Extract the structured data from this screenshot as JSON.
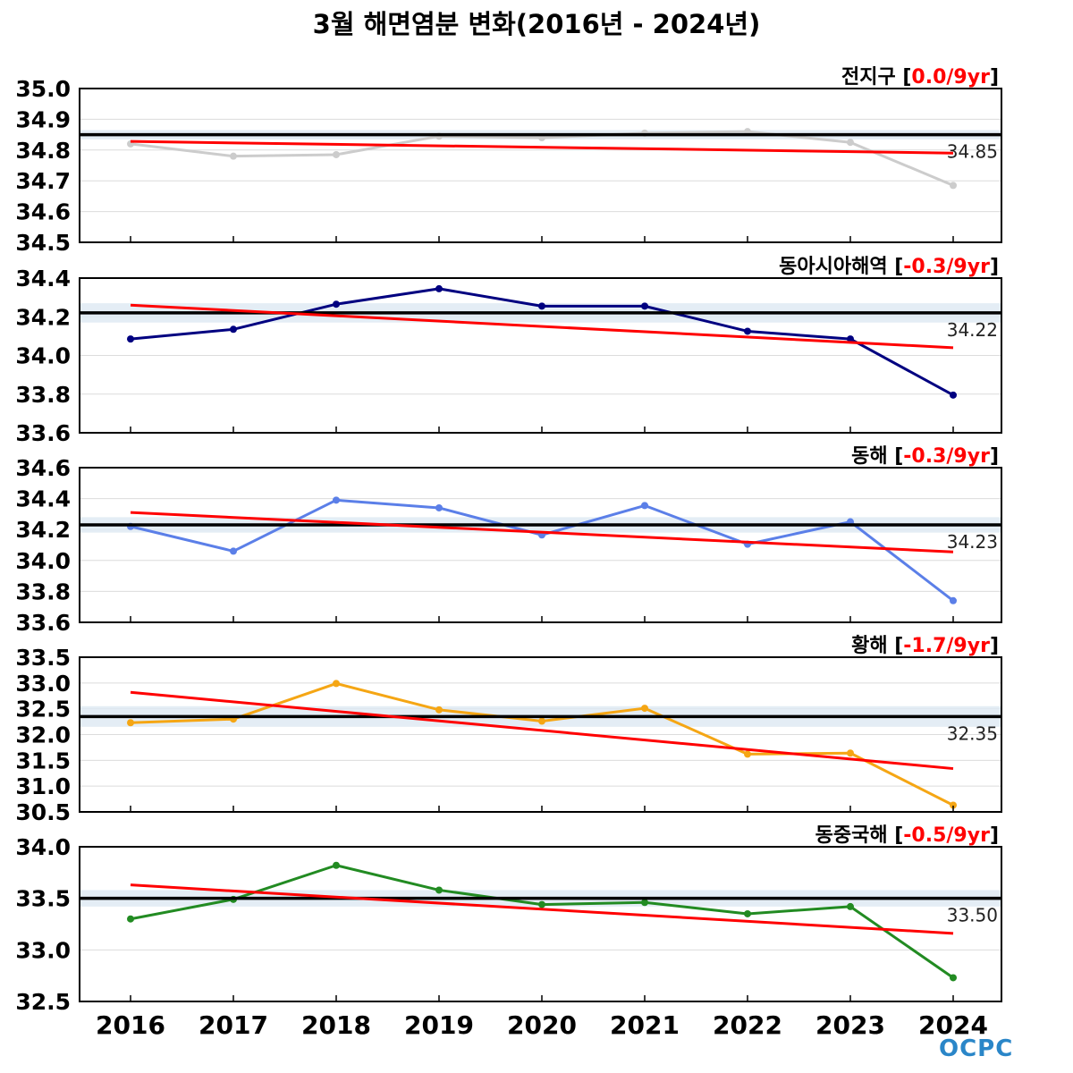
{
  "title": "3월 해면염분 변화(2016년 - 2024년)",
  "logo_text": "OCPC",
  "colors": {
    "trend": "#ff0000",
    "mean": "#000000",
    "band": "#dde8f2",
    "grid": "#dcdcdc",
    "frame": "#000000",
    "logo": "#2a86c8"
  },
  "chart_data": [
    {
      "type": "line",
      "name": "전지구",
      "trend_label": "0.0/9yr",
      "color": "#cccccc",
      "x": [
        2016,
        2017,
        2018,
        2019,
        2020,
        2021,
        2022,
        2023,
        2024
      ],
      "values": [
        34.82,
        34.78,
        34.785,
        34.845,
        34.84,
        34.855,
        34.86,
        34.825,
        34.685
      ],
      "mean": 34.85,
      "mean_label": "34.85",
      "band": [
        34.835,
        34.865
      ],
      "trend": [
        34.828,
        34.79
      ],
      "ylim": [
        34.5,
        35.0
      ],
      "yticks": [
        "35.0",
        "34.9",
        "34.8",
        "34.7",
        "34.6",
        "34.5"
      ]
    },
    {
      "type": "line",
      "name": "동아시아해역",
      "trend_label": "-0.3/9yr",
      "color": "#000080",
      "x": [
        2016,
        2017,
        2018,
        2019,
        2020,
        2021,
        2022,
        2023,
        2024
      ],
      "values": [
        34.085,
        34.135,
        34.265,
        34.345,
        34.255,
        34.255,
        34.125,
        34.085,
        33.795
      ],
      "mean": 34.22,
      "mean_label": "34.22",
      "band": [
        34.17,
        34.27
      ],
      "trend": [
        34.26,
        34.04
      ],
      "ylim": [
        33.6,
        34.4
      ],
      "yticks": [
        "34.4",
        "34.2",
        "34.0",
        "33.8",
        "33.6"
      ]
    },
    {
      "type": "line",
      "name": "동해",
      "trend_label": "-0.3/9yr",
      "color": "#5b7fe8",
      "x": [
        2016,
        2017,
        2018,
        2019,
        2020,
        2021,
        2022,
        2023,
        2024
      ],
      "values": [
        34.22,
        34.06,
        34.39,
        34.34,
        34.165,
        34.355,
        34.105,
        34.25,
        33.74
      ],
      "mean": 34.23,
      "mean_label": "34.23",
      "band": [
        34.18,
        34.28
      ],
      "trend": [
        34.31,
        34.055
      ],
      "ylim": [
        33.6,
        34.6
      ],
      "yticks": [
        "34.6",
        "34.4",
        "34.2",
        "34.0",
        "33.8",
        "33.6"
      ]
    },
    {
      "type": "line",
      "name": "황해",
      "trend_label": "-1.7/9yr",
      "color": "#f5a614",
      "x": [
        2016,
        2017,
        2018,
        2019,
        2020,
        2021,
        2022,
        2023,
        2024
      ],
      "values": [
        32.23,
        32.3,
        32.99,
        32.48,
        32.26,
        32.51,
        31.62,
        31.64,
        30.63
      ],
      "mean": 32.35,
      "mean_label": "32.35",
      "band": [
        32.15,
        32.55
      ],
      "trend": [
        32.82,
        31.34
      ],
      "ylim": [
        30.5,
        33.5
      ],
      "yticks": [
        "33.5",
        "33.0",
        "32.5",
        "32.0",
        "31.5",
        "31.0",
        "30.5"
      ]
    },
    {
      "type": "line",
      "name": "동중국해",
      "trend_label": "-0.5/9yr",
      "color": "#228b22",
      "x": [
        2016,
        2017,
        2018,
        2019,
        2020,
        2021,
        2022,
        2023,
        2024
      ],
      "values": [
        33.3,
        33.49,
        33.82,
        33.58,
        33.44,
        33.46,
        33.35,
        33.42,
        32.73
      ],
      "mean": 33.5,
      "mean_label": "33.50",
      "band": [
        33.42,
        33.58
      ],
      "trend": [
        33.63,
        33.16
      ],
      "ylim": [
        32.5,
        34.0
      ],
      "yticks": [
        "34.0",
        "33.5",
        "33.0",
        "32.5"
      ]
    }
  ],
  "xticks": [
    "2016",
    "2017",
    "2018",
    "2019",
    "2020",
    "2021",
    "2022",
    "2023",
    "2024"
  ]
}
